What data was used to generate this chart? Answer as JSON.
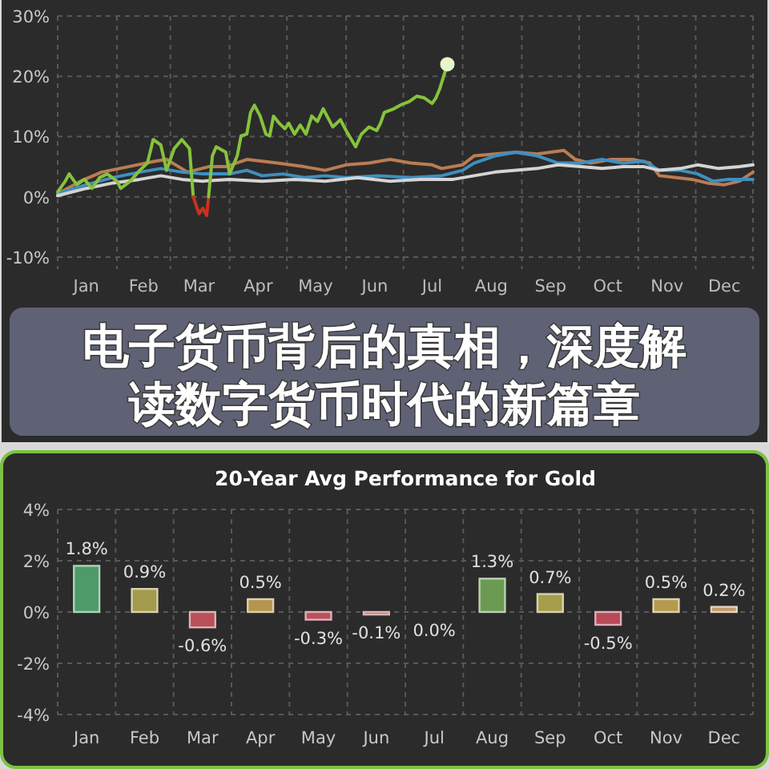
{
  "chart_data": [
    {
      "type": "line",
      "annotations": [
        "电子货币背后的真相，深度解读数字货币时代的新篇章"
      ],
      "xlim": [
        "--01-01",
        "--12-31"
      ],
      "xticks": [
        {
          "value": "--01-01",
          "label": null
        },
        {
          "value": "--01-16",
          "label": "Jan"
        },
        {
          "value": "--02-01",
          "label": null
        },
        {
          "value": "--02-15",
          "label": "Feb"
        },
        {
          "value": "--03-01",
          "label": null
        },
        {
          "value": "--03-16",
          "label": "Mar"
        },
        {
          "value": "--04-01",
          "label": null
        },
        {
          "value": "--04-16",
          "label": "Apr"
        },
        {
          "value": "--05-01",
          "label": null
        },
        {
          "value": "--05-16",
          "label": "May"
        },
        {
          "value": "--06-01",
          "label": null
        },
        {
          "value": "--06-16",
          "label": "Jun"
        },
        {
          "value": "--07-01",
          "label": null
        },
        {
          "value": "--07-16",
          "label": "Jul"
        },
        {
          "value": "--08-01",
          "label": null
        },
        {
          "value": "--08-16",
          "label": "Aug"
        },
        {
          "value": "--09-01",
          "label": null
        },
        {
          "value": "--09-16",
          "label": "Sep"
        },
        {
          "value": "--10-01",
          "label": null
        },
        {
          "value": "--10-16",
          "label": "Oct"
        },
        {
          "value": "--11-01",
          "label": null
        },
        {
          "value": "--11-16",
          "label": "Nov"
        },
        {
          "value": "--12-01",
          "label": null
        },
        {
          "value": "--12-16",
          "label": "Dec"
        },
        {
          "value": "--12-31",
          "label": null
        }
      ],
      "ylim": [
        -12,
        30
      ],
      "yticks": [
        {
          "value": 30,
          "label": "30%"
        },
        {
          "value": 20,
          "label": "20%"
        },
        {
          "value": 10,
          "label": "10%"
        },
        {
          "value": 0,
          "label": "0%"
        },
        {
          "value": -10,
          "label": "-10%"
        }
      ],
      "grid": true,
      "series": [
        {
          "color": "#b97d52",
          "x": [
            "--01-01",
            "--01-13",
            "--01-24",
            "--02-07",
            "--02-21",
            "--02-27",
            "--03-10",
            "--03-21",
            "--03-30",
            "--04-10",
            "--04-18",
            "--04-26",
            "--05-10",
            "--05-21",
            "--06-01",
            "--06-13",
            "--06-24",
            "--07-05",
            "--07-16",
            "--07-21",
            "--08-01",
            "--08-07",
            "--08-18",
            "--08-29",
            "--09-09",
            "--09-23",
            "--09-29",
            "--10-07",
            "--10-18",
            "--10-29",
            "--11-07",
            "--11-12",
            "--11-21",
            "--11-29",
            "--12-07",
            "--12-16",
            "--12-24",
            "--12-31"
          ],
          "values": [
            0.5,
            2.6,
            4.1,
            5.0,
            5.9,
            6.2,
            4.1,
            5.0,
            5.0,
            6.2,
            5.9,
            5.6,
            5.0,
            4.4,
            5.3,
            5.6,
            6.2,
            5.6,
            5.3,
            4.7,
            5.3,
            6.8,
            7.1,
            7.4,
            7.1,
            7.7,
            6.2,
            5.6,
            6.2,
            6.2,
            5.6,
            3.5,
            3.2,
            2.9,
            2.3,
            2.0,
            2.6,
            4.1
          ]
        },
        {
          "color": "#3f8fbf",
          "x": [
            "--01-01",
            "--01-16",
            "--01-30",
            "--02-13",
            "--02-24",
            "--03-07",
            "--03-18",
            "--04-01",
            "--04-10",
            "--04-18",
            "--04-29",
            "--05-10",
            "--05-21",
            "--06-01",
            "--06-18",
            "--07-05",
            "--07-21",
            "--08-01",
            "--08-07",
            "--08-18",
            "--08-29",
            "--09-09",
            "--09-20",
            "--10-02",
            "--10-13",
            "--10-24",
            "--11-04",
            "--11-12",
            "--11-23",
            "--12-02",
            "--12-10",
            "--12-18",
            "--12-31"
          ],
          "values": [
            0.5,
            2.0,
            3.2,
            4.1,
            4.7,
            4.1,
            3.8,
            3.8,
            4.4,
            3.5,
            3.8,
            3.2,
            3.5,
            3.2,
            3.5,
            3.2,
            3.5,
            4.4,
            5.6,
            6.8,
            7.4,
            6.8,
            5.6,
            5.6,
            6.2,
            5.6,
            5.9,
            4.4,
            4.4,
            3.8,
            2.6,
            2.9,
            2.9
          ]
        },
        {
          "color": "#d4d4d4",
          "x": [
            "--01-01",
            "--01-16",
            "--01-30",
            "--02-13",
            "--02-24",
            "--03-07",
            "--03-18",
            "--04-01",
            "--04-18",
            "--05-05",
            "--05-21",
            "--06-07",
            "--06-24",
            "--07-10",
            "--07-27",
            "--08-07",
            "--08-18",
            "--08-29",
            "--09-09",
            "--09-20",
            "--10-02",
            "--10-13",
            "--10-24",
            "--11-04",
            "--11-12",
            "--11-23",
            "--12-02",
            "--12-13",
            "--12-24",
            "--12-31"
          ],
          "values": [
            0.2,
            1.4,
            2.3,
            2.9,
            3.5,
            2.9,
            2.6,
            2.9,
            2.6,
            2.9,
            2.6,
            3.2,
            2.6,
            2.9,
            2.9,
            3.5,
            4.1,
            4.4,
            4.7,
            5.3,
            5.0,
            4.7,
            5.0,
            5.0,
            4.4,
            4.7,
            5.3,
            4.7,
            5.0,
            5.3
          ]
        },
        {
          "color": "#86c23c",
          "x": [
            "--01-01",
            "--01-05",
            "--01-07",
            "--01-11",
            "--01-15",
            "--01-19",
            "--01-23",
            "--01-27",
            "--02-01",
            "--02-03",
            "--02-08",
            "--02-13",
            "--02-17",
            "--02-20",
            "--02-24",
            "--02-27",
            "--03-03",
            "--03-07",
            "--03-11",
            "--03-13"
          ],
          "values": [
            0.8,
            2.6,
            3.8,
            2.0,
            2.9,
            1.4,
            3.2,
            3.8,
            2.6,
            1.4,
            2.6,
            4.4,
            5.6,
            9.5,
            8.6,
            4.4,
            8.0,
            9.5,
            8.0,
            0.0
          ]
        },
        {
          "color": "#c8321e",
          "x": [
            "--03-13",
            "--03-15",
            "--03-16",
            "--03-18",
            "--03-20",
            "--03-21"
          ],
          "values": [
            0.0,
            -1.9,
            -2.8,
            -1.9,
            -3.1,
            0.0
          ]
        },
        {
          "color": "#86c23c",
          "x": [
            "--03-21",
            "--03-23",
            "--03-25",
            "--03-30",
            "--04-01",
            "--04-05",
            "--04-07",
            "--04-10",
            "--04-12",
            "--04-14",
            "--04-17",
            "--04-20",
            "--04-22",
            "--04-24",
            "--04-27",
            "--04-30",
            "--05-02",
            "--05-05",
            "--05-08",
            "--05-11",
            "--05-14",
            "--05-17",
            "--05-20",
            "--05-23",
            "--05-25",
            "--05-29",
            "--06-01",
            "--06-06",
            "--06-09",
            "--06-13",
            "--06-17",
            "--06-19",
            "--06-21",
            "--06-26",
            "--06-30",
            "--07-04",
            "--07-08",
            "--07-12",
            "--07-16",
            "--07-18",
            "--07-20",
            "--07-24"
          ],
          "values": [
            0.0,
            6.8,
            8.3,
            7.4,
            3.8,
            6.8,
            10.1,
            10.4,
            14.0,
            15.2,
            13.4,
            10.4,
            10.1,
            13.4,
            12.2,
            11.3,
            12.2,
            10.4,
            11.9,
            10.4,
            13.4,
            12.5,
            14.6,
            12.8,
            11.6,
            12.8,
            11.0,
            8.3,
            10.4,
            11.6,
            11.0,
            12.2,
            14.0,
            14.6,
            15.3,
            15.8,
            16.7,
            16.4,
            15.5,
            16.4,
            17.9,
            22.0
          ]
        },
        {
          "type": "scatter",
          "marker": "circle",
          "color": "#e6f6cc",
          "x": [
            "--07-24"
          ],
          "values": [
            22.0
          ]
        }
      ]
    },
    {
      "type": "bar",
      "title": "20-Year Avg Performance for Gold",
      "categories": [
        "Jan",
        "Feb",
        "Mar",
        "Apr",
        "May",
        "Jun",
        "Jul",
        "Aug",
        "Sep",
        "Oct",
        "Nov",
        "Dec"
      ],
      "values": [
        1.8,
        0.9,
        -0.6,
        0.5,
        -0.3,
        -0.1,
        0.0,
        1.3,
        0.7,
        -0.5,
        0.5,
        0.2
      ],
      "colors": [
        "#4e9a68",
        "#a39a4c",
        "#b9505a",
        "#b5954e",
        "#b9505e",
        "#b85a5a",
        "#c8806a",
        "#6b9a52",
        "#a69e4a",
        "#b84a5a",
        "#b39a4e",
        "#c49a6a"
      ],
      "value_labels": [
        "1.8%",
        "0.9%",
        "-0.6%",
        "0.5%",
        "-0.3%",
        "-0.1%",
        "0.0%",
        "1.3%",
        "0.7%",
        "-0.5%",
        "0.5%",
        "0.2%"
      ],
      "ylim": [
        -4,
        4
      ],
      "yticks": [
        {
          "value": 4,
          "label": "4%"
        },
        {
          "value": 2,
          "label": "2%"
        },
        {
          "value": 0,
          "label": "0%"
        },
        {
          "value": -2,
          "label": "-2%"
        },
        {
          "value": -4,
          "label": "-4%"
        }
      ],
      "grid": true
    }
  ]
}
